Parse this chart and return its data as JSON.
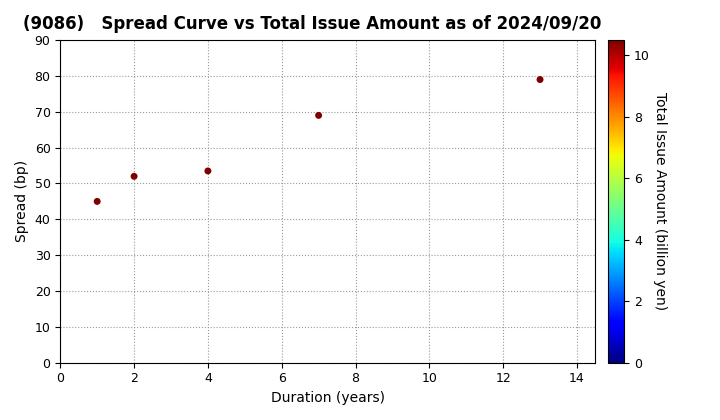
{
  "title": "(9086)   Spread Curve vs Total Issue Amount as of 2024/09/20",
  "xlabel": "Duration (years)",
  "ylabel": "Spread (bp)",
  "colorbar_label": "Total Issue Amount (billion yen)",
  "points": [
    {
      "duration": 1.0,
      "spread": 45,
      "amount": 10.5
    },
    {
      "duration": 2.0,
      "spread": 52,
      "amount": 10.5
    },
    {
      "duration": 4.0,
      "spread": 53.5,
      "amount": 10.5
    },
    {
      "duration": 7.0,
      "spread": 69,
      "amount": 10.5
    },
    {
      "duration": 13.0,
      "spread": 79,
      "amount": 10.5
    }
  ],
  "xlim": [
    0,
    14.5
  ],
  "ylim": [
    0,
    90
  ],
  "xticks": [
    0,
    2,
    4,
    6,
    8,
    10,
    12,
    14
  ],
  "yticks": [
    0,
    10,
    20,
    30,
    40,
    50,
    60,
    70,
    80,
    90
  ],
  "colorbar_vmin": 0,
  "colorbar_vmax": 10.5,
  "colorbar_ticks": [
    0,
    2,
    4,
    6,
    8,
    10
  ],
  "marker_size": 25,
  "background_color": "#ffffff",
  "grid_color": "#999999",
  "title_fontsize": 12,
  "axis_label_fontsize": 10,
  "tick_fontsize": 9
}
